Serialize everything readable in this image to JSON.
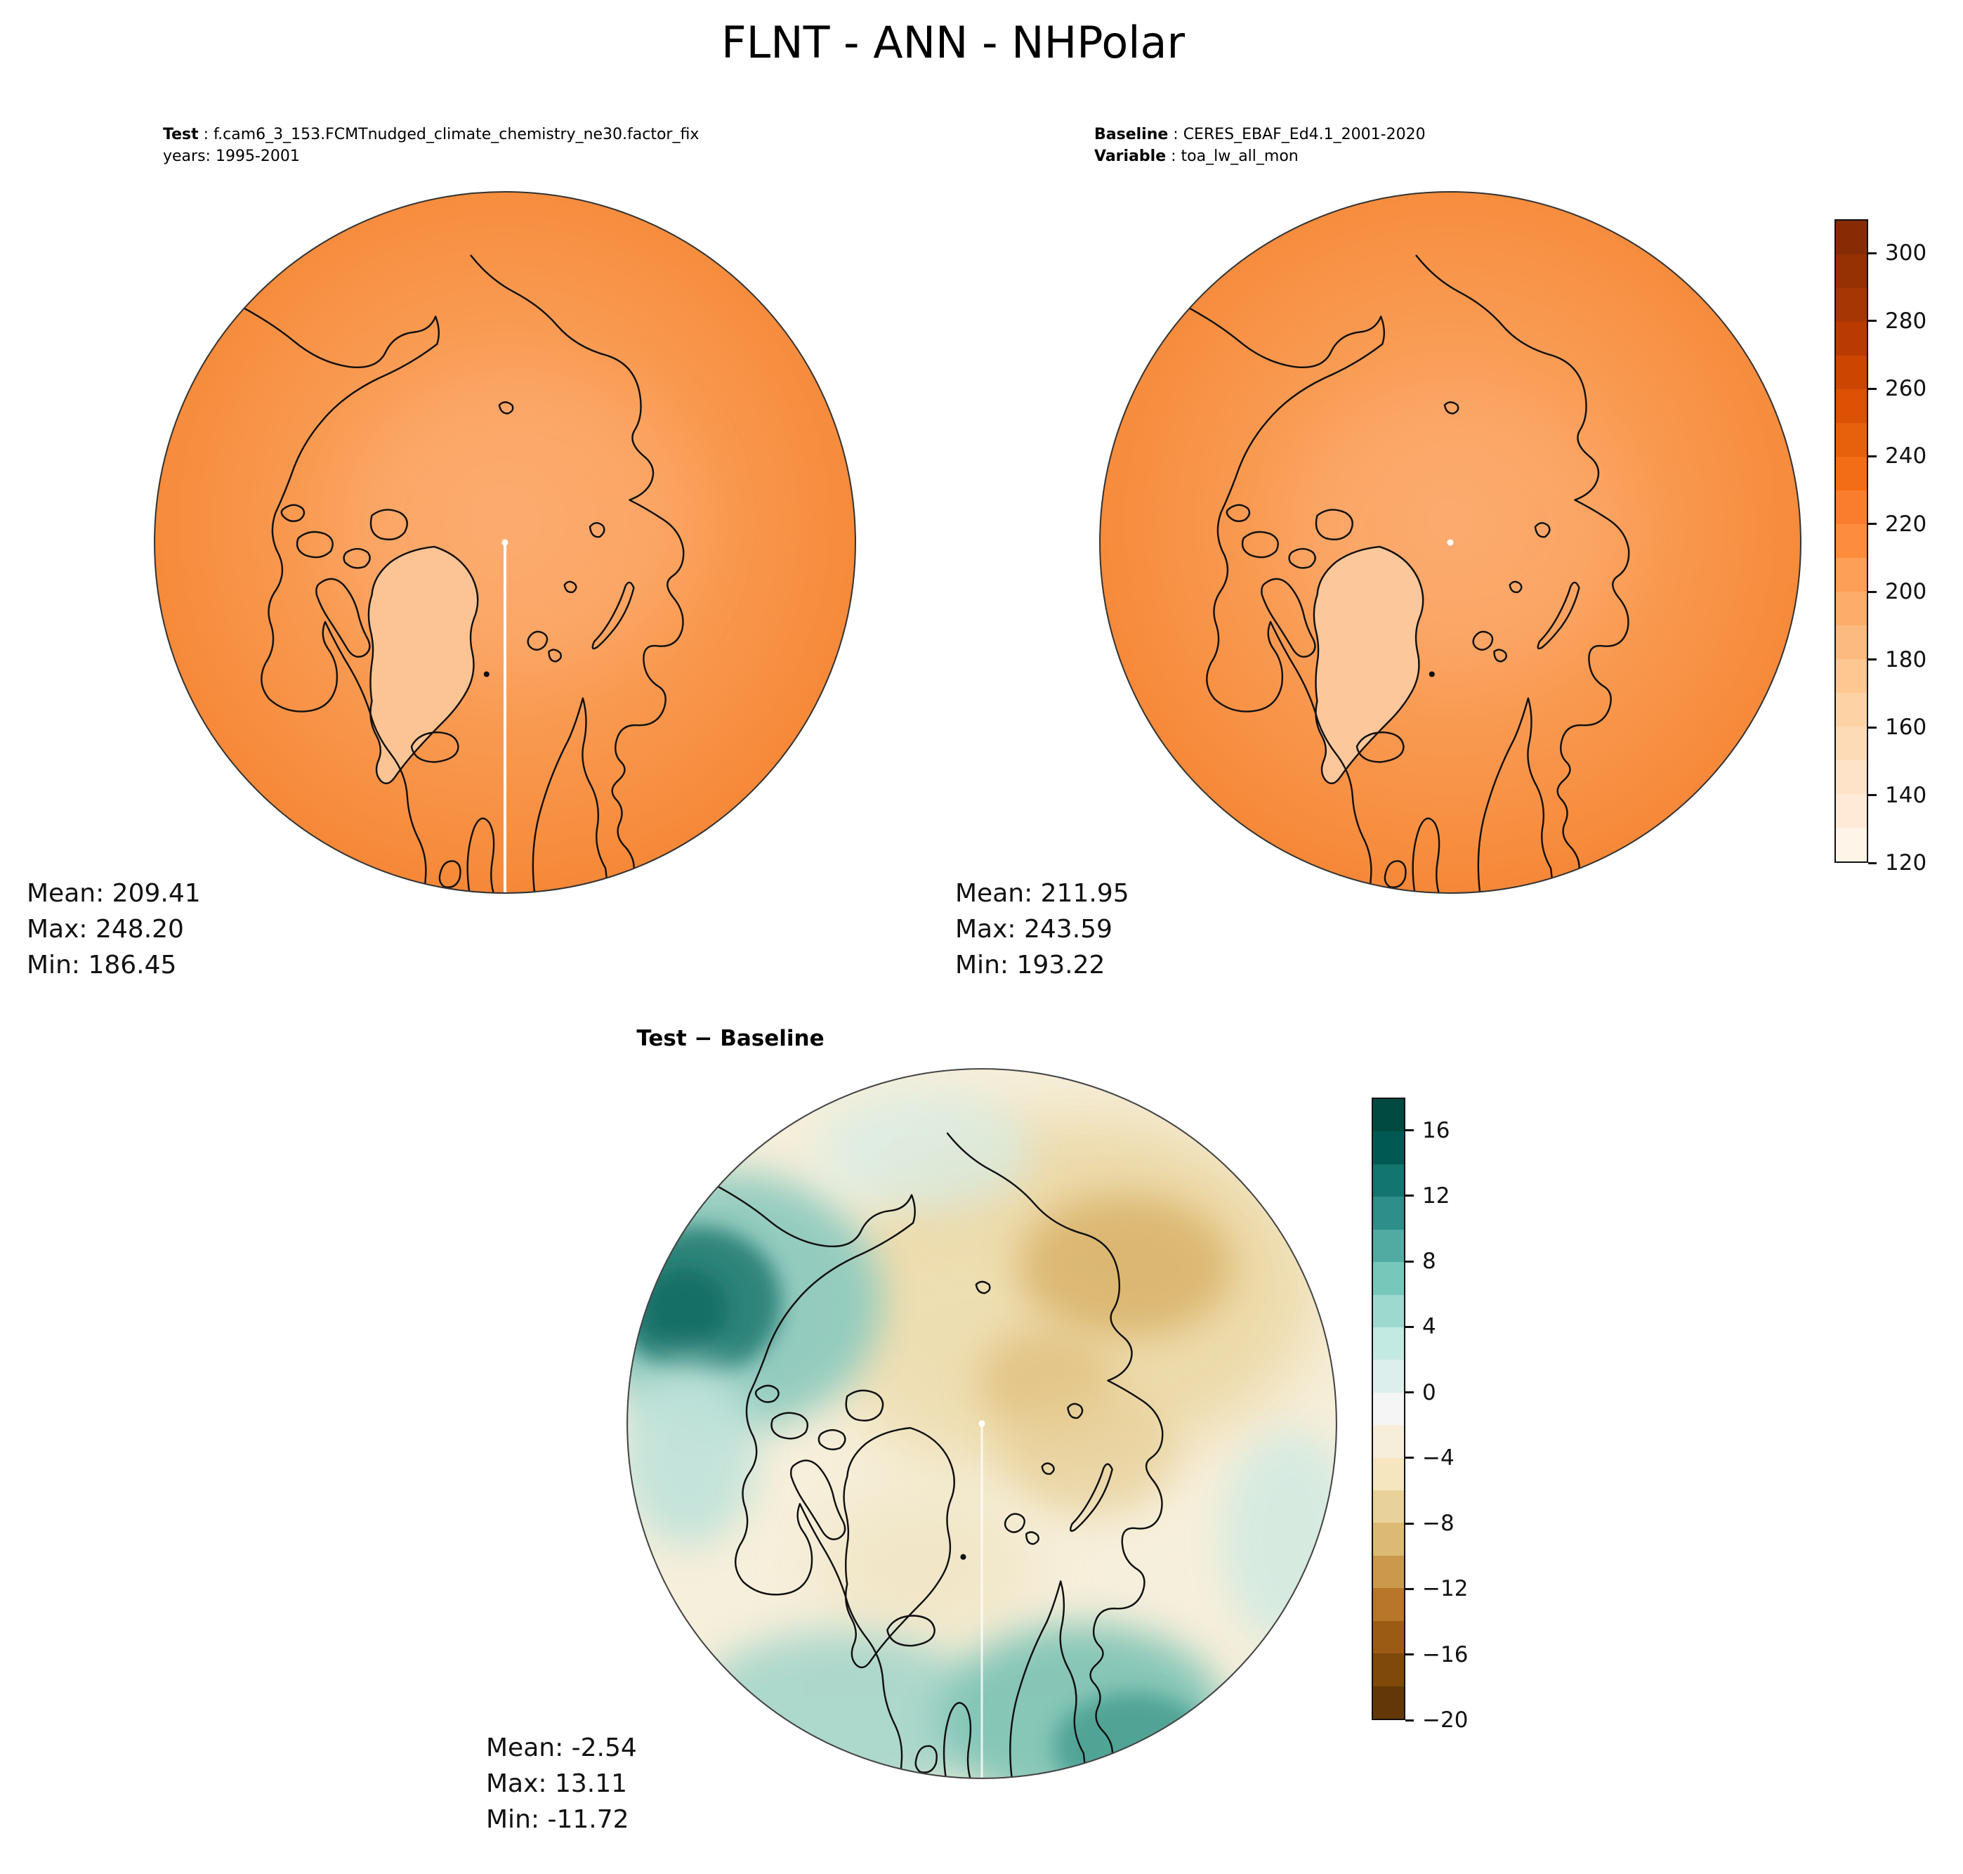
{
  "figure": {
    "title": "FLNT - ANN - NHPolar",
    "background": "#ffffff"
  },
  "test_panel": {
    "meta": {
      "label1": "Test",
      "value1": " : f.cam6_3_153.FCMTnudged_climate_chemistry_ne30.factor_fix",
      "line2": "years: 1995-2001"
    },
    "stats": {
      "mean": "Mean: 209.41",
      "max": "Max: 248.20",
      "min": "Min: 186.45"
    }
  },
  "baseline_panel": {
    "meta": {
      "label1": "Baseline",
      "value1": " : CERES_EBAF_Ed4.1_2001-2020",
      "label2": "Variable",
      "value2": " : toa_lw_all_mon"
    },
    "stats": {
      "mean": "Mean: 211.95",
      "max": "Max: 243.59",
      "min": "Min: 193.22"
    }
  },
  "diff_panel": {
    "title": "Test − Baseline",
    "stats": {
      "mean": "Mean: -2.54",
      "max": "Max: 13.11",
      "min": "Min: -11.72"
    }
  },
  "colorbar_main": {
    "ticks": [
      "300",
      "280",
      "260",
      "240",
      "220",
      "200",
      "180",
      "160",
      "140",
      "120"
    ],
    "segments_bottom_to_top": [
      "#fff4e8",
      "#feead6",
      "#fee3c8",
      "#fddbb6",
      "#fdd3a6",
      "#fdc792",
      "#fdba7e",
      "#fdac69",
      "#fd9f56",
      "#fd8d3c",
      "#f97d2c",
      "#f26d16",
      "#e7600b",
      "#dc5104",
      "#cc4601",
      "#b93b02",
      "#a63603",
      "#953103",
      "#862b04"
    ]
  },
  "colorbar_diff": {
    "ticks": [
      "16",
      "12",
      "8",
      "4",
      "0",
      "−4",
      "−8",
      "−12",
      "−16",
      "−20"
    ],
    "segments_bottom_to_top": [
      "#633806",
      "#7f4a09",
      "#9c5b15",
      "#b77628",
      "#cb994b",
      "#dbbb74",
      "#e9d29a",
      "#f5e6c0",
      "#f6eedb",
      "#f5f5f5",
      "#ddefed",
      "#c3e9e3",
      "#9ed9d0",
      "#78c7bb",
      "#51aba2",
      "#2d8f87",
      "#12766e",
      "#015954",
      "#004a41"
    ]
  },
  "chart_data": [
    {
      "type": "heatmap",
      "subtype": "north-polar-stereographic contour map",
      "name": "test_map",
      "title_lines": [
        "Test : f.cam6_3_153.FCMTnudged_climate_chemistry_ne30.factor_fix",
        "years: 1995-2001"
      ],
      "figure_title": "FLNT - ANN - NHPolar",
      "stats": {
        "mean": 209.41,
        "max": 248.2,
        "min": 186.45
      },
      "color_scale": {
        "tick_values": [
          120,
          140,
          160,
          180,
          200,
          220,
          240,
          260,
          280,
          300
        ],
        "orientation": "vertical",
        "palette": "sequential oranges",
        "low_hex": "#fff4e8",
        "high_hex": "#7f2704"
      }
    },
    {
      "type": "heatmap",
      "subtype": "north-polar-stereographic contour map",
      "name": "baseline_map",
      "title_lines": [
        "Baseline : CERES_EBAF_Ed4.1_2001-2020",
        "Variable : toa_lw_all_mon"
      ],
      "stats": {
        "mean": 211.95,
        "max": 243.59,
        "min": 193.22
      },
      "color_scale": {
        "tick_values": [
          120,
          140,
          160,
          180,
          200,
          220,
          240,
          260,
          280,
          300
        ],
        "orientation": "vertical",
        "palette": "sequential oranges",
        "low_hex": "#fff4e8",
        "high_hex": "#7f2704"
      }
    },
    {
      "type": "heatmap",
      "subtype": "north-polar-stereographic contour map",
      "name": "difference_map",
      "title": "Test − Baseline",
      "stats": {
        "mean": -2.54,
        "max": 13.11,
        "min": -11.72
      },
      "color_scale": {
        "tick_values": [
          16,
          12,
          8,
          4,
          0,
          -4,
          -8,
          -12,
          -16,
          -20
        ],
        "orientation": "vertical",
        "palette": "diverging brown-to-teal",
        "low_hex": "#543005",
        "mid_hex": "#f5f5f5",
        "high_hex": "#003c30"
      }
    }
  ]
}
